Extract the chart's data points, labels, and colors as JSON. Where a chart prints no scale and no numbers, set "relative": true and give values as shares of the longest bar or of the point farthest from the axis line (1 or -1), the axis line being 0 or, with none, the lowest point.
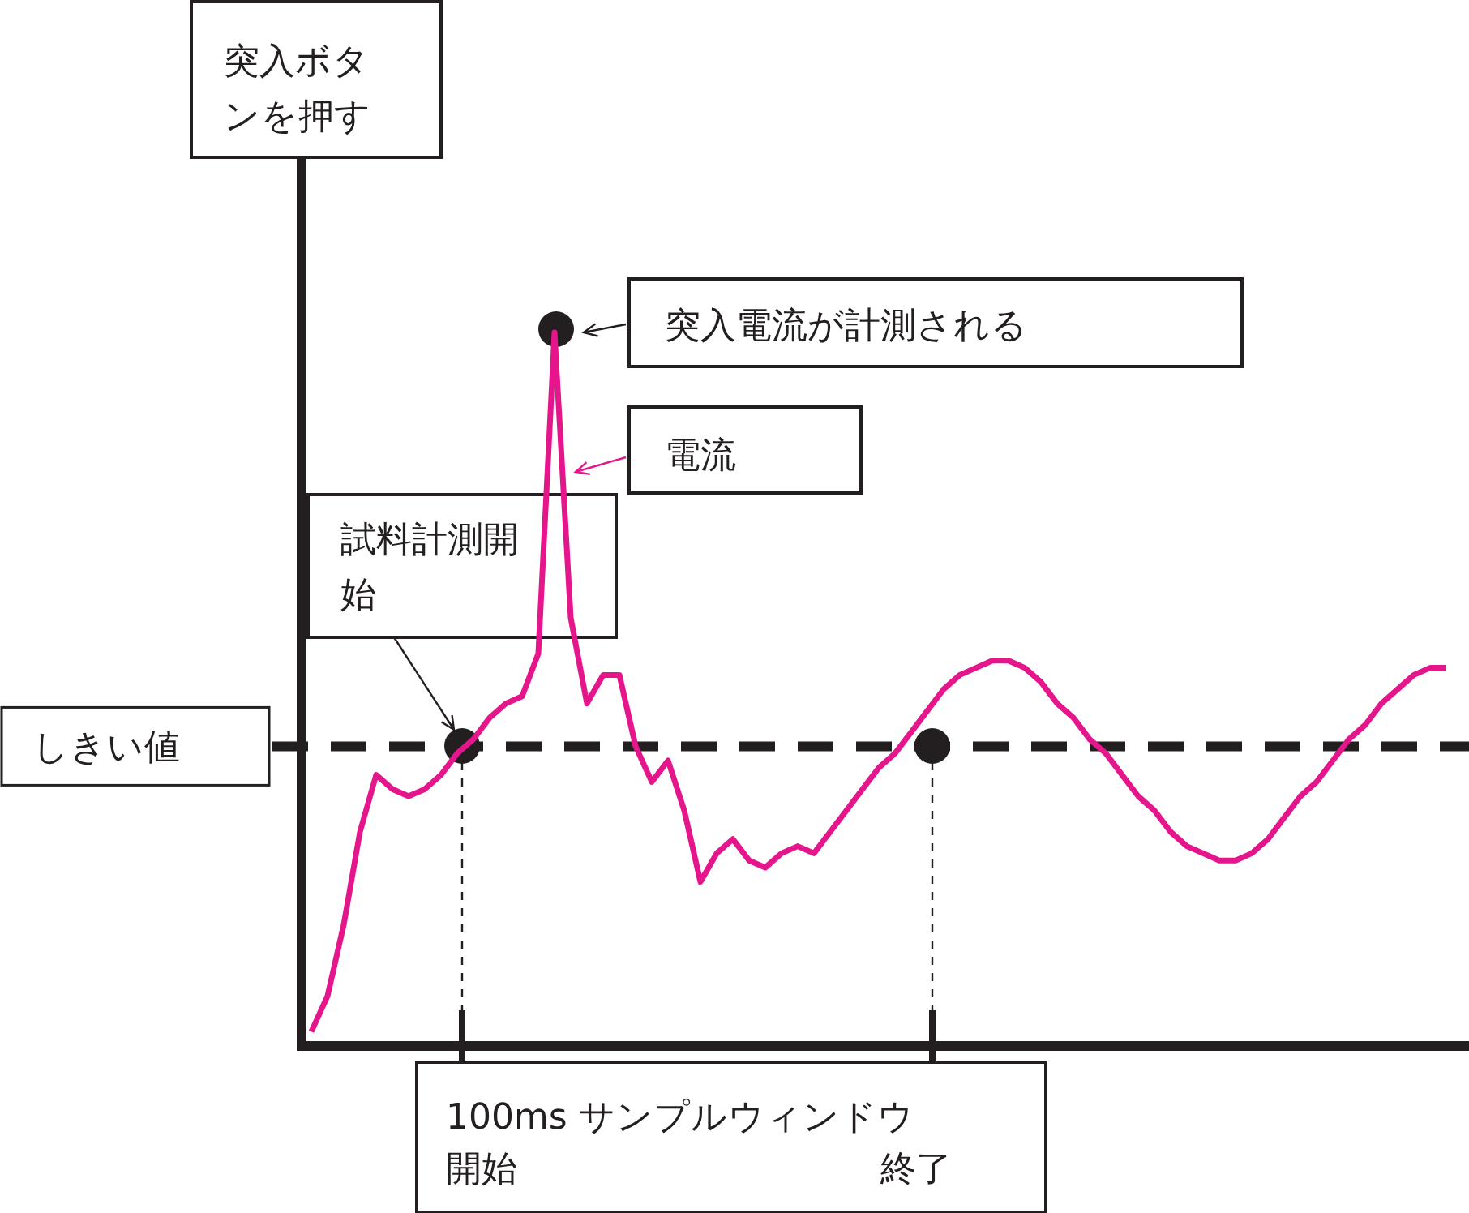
{
  "chart_data": {
    "type": "line",
    "relative": true,
    "categories": [
      null,
      null,
      null,
      null,
      null,
      null,
      null,
      null,
      null,
      null,
      null,
      null,
      null,
      null,
      null,
      null,
      null,
      null,
      null,
      null,
      null,
      null,
      null,
      null,
      null,
      null,
      null,
      null,
      null,
      null,
      null,
      null,
      null,
      null,
      null,
      null,
      null,
      null,
      null,
      null,
      null,
      null,
      null,
      null,
      null,
      null,
      null,
      null,
      null,
      null,
      null,
      null,
      null,
      null,
      null,
      null,
      null,
      null,
      null,
      null,
      null,
      null,
      null,
      null,
      null,
      null,
      null,
      null,
      null,
      null,
      null
    ],
    "series": [
      {
        "name": "電流",
        "color": "#e5168c",
        "values": [
          0.02,
          0.07,
          0.17,
          0.3,
          0.38,
          0.36,
          0.35,
          0.36,
          0.38,
          0.41,
          0.43,
          0.46,
          0.48,
          0.49,
          0.55,
          1,
          0.6,
          0.48,
          0.52,
          0.52,
          0.42,
          0.37,
          0.4,
          0.33,
          0.23,
          0.27,
          0.29,
          0.26,
          0.25,
          0.27,
          0.28,
          0.27,
          0.3,
          0.33,
          0.36,
          0.39,
          0.41,
          0.44,
          0.47,
          0.5,
          0.52,
          0.53,
          0.54,
          0.54,
          0.53,
          0.51,
          0.48,
          0.46,
          0.43,
          0.41,
          0.38,
          0.35,
          0.33,
          0.3,
          0.28,
          0.27,
          0.26,
          0.26,
          0.27,
          0.29,
          0.32,
          0.35,
          0.37,
          0.4,
          0.43,
          0.45,
          0.48,
          0.5,
          0.52,
          0.53,
          0.53
        ]
      }
    ],
    "ref_lines": [
      {
        "axis": "y",
        "value": 0.42,
        "label": "しきい値",
        "color": "#231f20",
        "line_style": "dashed"
      }
    ],
    "annotations": [
      "突入ボタンを押す",
      "突入電流が計測される",
      "試料計測開始",
      "100ms サンプルウィンドウ",
      "開始",
      "終了"
    ]
  }
}
